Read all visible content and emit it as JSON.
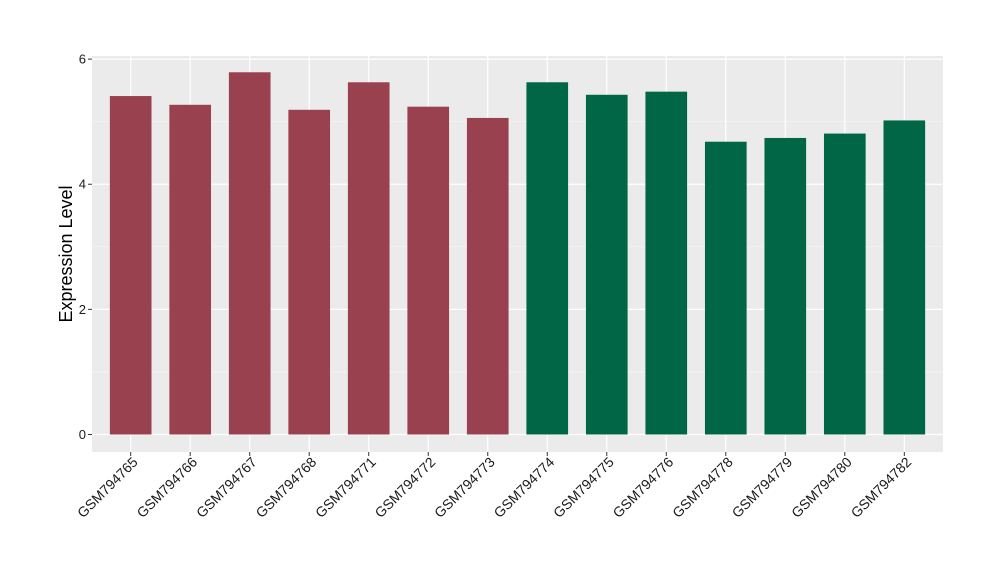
{
  "chart_data": {
    "type": "bar",
    "categories": [
      "GSM794765",
      "GSM794766",
      "GSM794767",
      "GSM794768",
      "GSM794771",
      "GSM794772",
      "GSM794773",
      "GSM794774",
      "GSM794775",
      "GSM794776",
      "GSM794778",
      "GSM794779",
      "GSM794780",
      "GSM794782"
    ],
    "values": [
      5.41,
      5.27,
      5.79,
      5.19,
      5.63,
      5.24,
      5.06,
      5.63,
      5.43,
      5.48,
      4.68,
      4.74,
      4.81,
      5.02
    ],
    "groups": [
      0,
      0,
      0,
      0,
      0,
      0,
      0,
      1,
      1,
      1,
      1,
      1,
      1,
      1
    ],
    "group_colors": [
      "#9a414f",
      "#006646"
    ],
    "title": "",
    "xlabel": "",
    "ylabel": "Expression Level",
    "ylim": [
      -0.28,
      6.05
    ],
    "yticks": [
      0,
      2,
      4,
      6
    ],
    "ytick_labels": [
      "0",
      "2",
      "4",
      "6"
    ],
    "grid": true,
    "panel_background": "#ebebeb",
    "legend": "none"
  }
}
